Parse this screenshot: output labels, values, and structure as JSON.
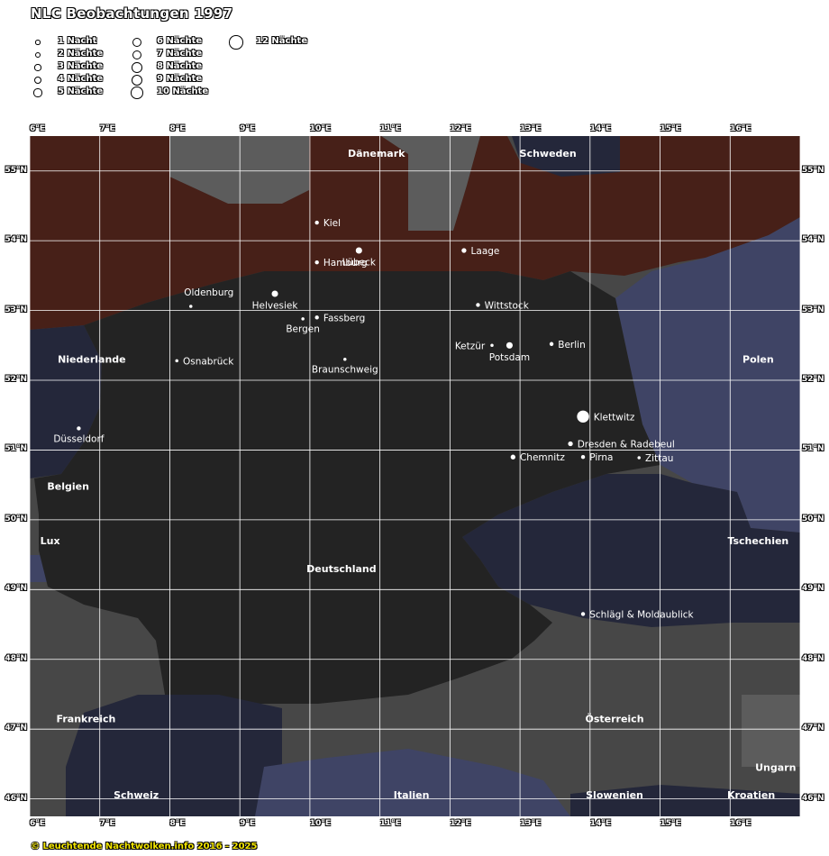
{
  "title": "NLC Beobachtungen 1997",
  "legend": [
    {
      "label": "1 Nacht",
      "nights": 1
    },
    {
      "label": "2 Nächte",
      "nights": 2
    },
    {
      "label": "3 Nächte",
      "nights": 3
    },
    {
      "label": "4 Nächte",
      "nights": 4
    },
    {
      "label": "5 Nächte",
      "nights": 5
    },
    {
      "label": "6 Nächte",
      "nights": 6
    },
    {
      "label": "7 Nächte",
      "nights": 7
    },
    {
      "label": "8 Nächte",
      "nights": 8
    },
    {
      "label": "9 Nächte",
      "nights": 9
    },
    {
      "label": "10 Nächte",
      "nights": 10
    },
    {
      "label": "12 Nächte",
      "nights": 12
    }
  ],
  "lon_labels": [
    "6°E",
    "7°E",
    "8°E",
    "9°E",
    "10°E",
    "11°E",
    "12°E",
    "13°E",
    "14°E",
    "15°E",
    "16°E"
  ],
  "lat_labels": [
    "55°N",
    "54°N",
    "53°N",
    "52°N",
    "51°N",
    "50°N",
    "49°N",
    "48°N",
    "47°N",
    "46°N"
  ],
  "bounds": {
    "lon_min": 6,
    "lon_max": 17,
    "lat_min": 45.75,
    "lat_max": 55.5
  },
  "colors": {
    "germany": "#232323",
    "sea": "#3f4465",
    "sea_dark": "#24273a",
    "land_gray": "#474747",
    "land_light": "#5c5c5c",
    "land_brown": "#472018",
    "grid": "#ffffff",
    "dot": "#ffffff",
    "label": "#ffffff",
    "copyright": "#f3e600"
  },
  "countries": [
    {
      "name": "Dänemark",
      "lon": 10.95,
      "lat": 55.2
    },
    {
      "name": "Schweden",
      "lon": 13.4,
      "lat": 55.2
    },
    {
      "name": "Niederlande",
      "lon": 6.4,
      "lat": 52.25
    },
    {
      "name": "Polen",
      "lon": 16.4,
      "lat": 52.25
    },
    {
      "name": "Belgien",
      "lon": 6.25,
      "lat": 50.43
    },
    {
      "name": "Lux",
      "lon": 6.15,
      "lat": 49.65
    },
    {
      "name": "Tschechien",
      "lon": 16.4,
      "lat": 49.65
    },
    {
      "name": "Deutschland",
      "lon": 10.45,
      "lat": 49.25
    },
    {
      "name": "Frankreich",
      "lon": 6.38,
      "lat": 47.1
    },
    {
      "name": "Österreich",
      "lon": 14.35,
      "lat": 47.1
    },
    {
      "name": "Ungarn",
      "lon": 16.65,
      "lat": 46.4
    },
    {
      "name": "Schweiz",
      "lon": 7.52,
      "lat": 46.01
    },
    {
      "name": "Italien",
      "lon": 11.45,
      "lat": 46.01
    },
    {
      "name": "Slowenien",
      "lon": 14.35,
      "lat": 46.01
    },
    {
      "name": "Kroatien",
      "lon": 16.3,
      "lat": 46.01
    }
  ],
  "stations": [
    {
      "name": "Kiel",
      "lon": 10.1,
      "lat": 54.26,
      "nights": 2,
      "label_pos": "right"
    },
    {
      "name": "Lübeck",
      "lon": 10.7,
      "lat": 53.86,
      "nights": 5,
      "label_pos": "below"
    },
    {
      "name": "Laage",
      "lon": 12.2,
      "lat": 53.86,
      "nights": 3,
      "label_pos": "right"
    },
    {
      "name": "Hamburg",
      "lon": 10.1,
      "lat": 53.69,
      "nights": 2,
      "label_pos": "right"
    },
    {
      "name": "Oldenburg",
      "lon": 8.3,
      "lat": 53.06,
      "nights": 1,
      "label_pos": "above"
    },
    {
      "name": "Helvesiek",
      "lon": 9.5,
      "lat": 53.24,
      "nights": 5,
      "label_pos": "below"
    },
    {
      "name": "Wittstock",
      "lon": 12.4,
      "lat": 53.08,
      "nights": 2,
      "label_pos": "right"
    },
    {
      "name": "Bergen",
      "lon": 9.9,
      "lat": 52.88,
      "nights": 1,
      "label_pos": "below"
    },
    {
      "name": "Fassberg",
      "lon": 10.1,
      "lat": 52.9,
      "nights": 2,
      "label_pos": "right"
    },
    {
      "name": "Ketzür",
      "lon": 12.6,
      "lat": 52.5,
      "nights": 1,
      "label_pos": "left"
    },
    {
      "name": "Potsdam",
      "lon": 12.85,
      "lat": 52.5,
      "nights": 5,
      "label_pos": "below"
    },
    {
      "name": "Berlin",
      "lon": 13.45,
      "lat": 52.52,
      "nights": 2,
      "label_pos": "right"
    },
    {
      "name": "Osnabrück",
      "lon": 8.1,
      "lat": 52.28,
      "nights": 1,
      "label_pos": "right"
    },
    {
      "name": "Braunschweig",
      "lon": 10.5,
      "lat": 52.3,
      "nights": 1,
      "label_pos": "below"
    },
    {
      "name": "Düsseldorf",
      "lon": 6.7,
      "lat": 51.31,
      "nights": 2,
      "label_pos": "below"
    },
    {
      "name": "Klettwitz",
      "lon": 13.9,
      "lat": 51.48,
      "nights": 12,
      "label_pos": "right"
    },
    {
      "name": "Dresden & Radebeul",
      "lon": 13.72,
      "lat": 51.09,
      "nights": 3,
      "label_pos": "right"
    },
    {
      "name": "Chemnitz",
      "lon": 12.9,
      "lat": 50.9,
      "nights": 3,
      "label_pos": "right"
    },
    {
      "name": "Pirna",
      "lon": 13.9,
      "lat": 50.9,
      "nights": 2,
      "label_pos": "right"
    },
    {
      "name": "Zittau",
      "lon": 14.7,
      "lat": 50.89,
      "nights": 1,
      "label_pos": "right"
    },
    {
      "name": "Schlägl & Moldaublick",
      "lon": 13.9,
      "lat": 48.65,
      "nights": 2,
      "label_pos": "right"
    }
  ],
  "copyright": "© Leuchtende Nachtwolken.info 2016 - 2025"
}
